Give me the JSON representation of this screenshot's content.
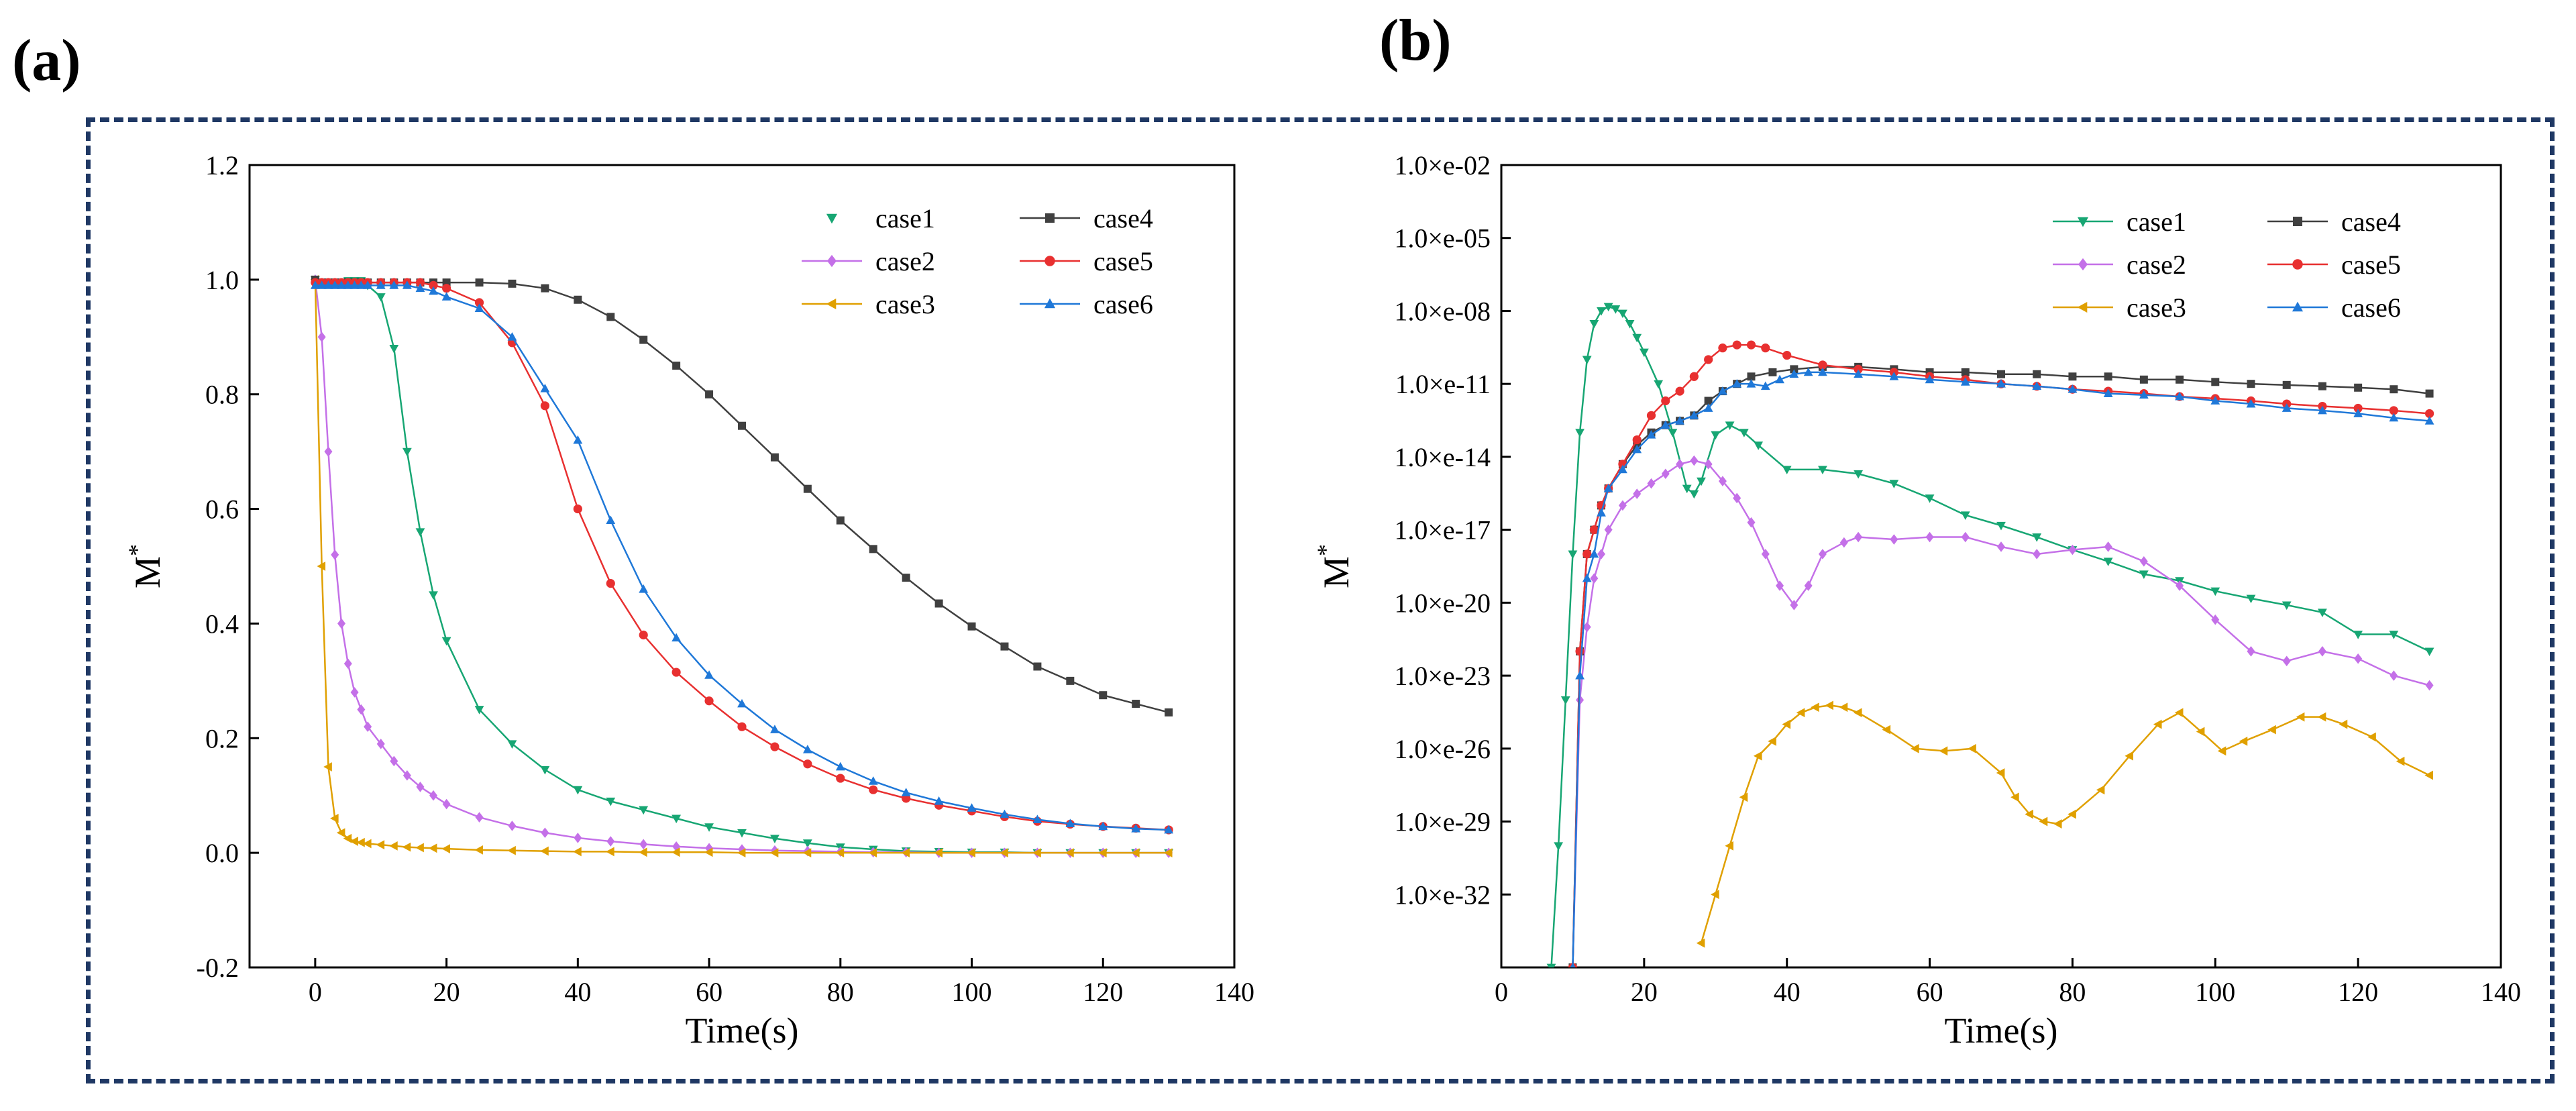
{
  "panels": {
    "a": "(a)",
    "b": "(b)"
  },
  "series_names": [
    "case1",
    "case2",
    "case3",
    "case4",
    "case5",
    "case6"
  ],
  "series_colors": {
    "case1": "#17a673",
    "case2": "#c470e8",
    "case3": "#e0a000",
    "case4": "#404040",
    "case5": "#e83030",
    "case6": "#1f78d8"
  },
  "series_markers": {
    "case1": "triangle-down",
    "case2": "diamond",
    "case3": "left-triangle",
    "case4": "square",
    "case5": "circle",
    "case6": "triangle-up"
  },
  "chart_data": [
    {
      "type": "line",
      "panel": "(a)",
      "xlabel": "Time(s)",
      "ylabel": "M",
      "ylabel_superscript": "*",
      "xlim": [
        -10,
        140
      ],
      "ylim": [
        -0.2,
        1.2
      ],
      "xticks": [
        0,
        20,
        40,
        60,
        80,
        100,
        120,
        140
      ],
      "yticks": [
        -0.2,
        0.0,
        0.2,
        0.4,
        0.6,
        0.8,
        1.0,
        1.2
      ],
      "ytick_labels": [
        "-0.2",
        "0.0",
        "0.2",
        "0.4",
        "0.6",
        "0.8",
        "1.0",
        "1.2"
      ],
      "grid": false,
      "legend_position": "top-right",
      "x": [
        0,
        1,
        2,
        3,
        4,
        5,
        6,
        7,
        8,
        10,
        12,
        14,
        16,
        18,
        20,
        25,
        30,
        35,
        40,
        45,
        50,
        55,
        60,
        65,
        70,
        75,
        80,
        85,
        90,
        95,
        100,
        105,
        110,
        115,
        120,
        125,
        130
      ],
      "series": [
        {
          "name": "case1",
          "values": [
            1.0,
            0.995,
            0.995,
            0.995,
            0.995,
            0.998,
            0.998,
            0.998,
            0.99,
            0.97,
            0.88,
            0.7,
            0.56,
            0.45,
            0.37,
            0.25,
            0.19,
            0.145,
            0.11,
            0.09,
            0.075,
            0.06,
            0.045,
            0.035,
            0.025,
            0.017,
            0.01,
            0.006,
            0.003,
            0.002,
            0.001,
            0.001,
            0.0,
            0.0,
            0.0,
            0.0,
            0.0
          ]
        },
        {
          "name": "case2",
          "values": [
            1.0,
            0.9,
            0.7,
            0.52,
            0.4,
            0.33,
            0.28,
            0.25,
            0.22,
            0.19,
            0.16,
            0.135,
            0.115,
            0.1,
            0.085,
            0.062,
            0.047,
            0.035,
            0.026,
            0.02,
            0.015,
            0.011,
            0.008,
            0.006,
            0.004,
            0.003,
            0.002,
            0.001,
            0.001,
            0.0,
            0.0,
            0.0,
            0.0,
            0.0,
            0.0,
            0.0,
            0.0
          ]
        },
        {
          "name": "case3",
          "values": [
            1.0,
            0.5,
            0.15,
            0.06,
            0.035,
            0.025,
            0.02,
            0.018,
            0.016,
            0.014,
            0.012,
            0.01,
            0.009,
            0.008,
            0.007,
            0.005,
            0.004,
            0.003,
            0.002,
            0.002,
            0.001,
            0.001,
            0.001,
            0.0,
            0.0,
            0.0,
            0.0,
            0.0,
            0.0,
            0.0,
            0.0,
            0.0,
            0.0,
            0.0,
            0.0,
            0.0,
            0.0
          ]
        },
        {
          "name": "case4",
          "values": [
            1.0,
            0.995,
            0.995,
            0.995,
            0.995,
            0.995,
            0.995,
            0.995,
            0.995,
            0.995,
            0.995,
            0.995,
            0.995,
            0.995,
            0.995,
            0.995,
            0.993,
            0.985,
            0.965,
            0.935,
            0.895,
            0.85,
            0.8,
            0.745,
            0.69,
            0.635,
            0.58,
            0.53,
            0.48,
            0.435,
            0.395,
            0.36,
            0.325,
            0.3,
            0.275,
            0.26,
            0.245
          ]
        },
        {
          "name": "case5",
          "values": [
            0.995,
            0.995,
            0.995,
            0.995,
            0.995,
            0.995,
            0.995,
            0.995,
            0.995,
            0.995,
            0.995,
            0.995,
            0.995,
            0.99,
            0.985,
            0.96,
            0.89,
            0.78,
            0.6,
            0.47,
            0.38,
            0.315,
            0.265,
            0.22,
            0.185,
            0.155,
            0.13,
            0.11,
            0.095,
            0.083,
            0.073,
            0.063,
            0.055,
            0.05,
            0.046,
            0.043,
            0.04
          ]
        },
        {
          "name": "case6",
          "values": [
            0.99,
            0.99,
            0.99,
            0.99,
            0.99,
            0.99,
            0.99,
            0.99,
            0.99,
            0.99,
            0.99,
            0.99,
            0.985,
            0.98,
            0.97,
            0.95,
            0.9,
            0.81,
            0.72,
            0.58,
            0.46,
            0.375,
            0.31,
            0.26,
            0.215,
            0.18,
            0.15,
            0.125,
            0.105,
            0.09,
            0.078,
            0.067,
            0.058,
            0.051,
            0.046,
            0.042,
            0.04
          ]
        }
      ]
    },
    {
      "type": "line",
      "panel": "(b)",
      "xlabel": "Time(s)",
      "ylabel": "M",
      "ylabel_superscript": "*",
      "y_scale": "log",
      "xlim": [
        0,
        140
      ],
      "ylim": [
        1e-35,
        0.01
      ],
      "xticks": [
        0,
        20,
        40,
        60,
        80,
        100,
        120,
        140
      ],
      "yticks": [
        1e-32,
        1e-29,
        1e-26,
        1e-23,
        1e-20,
        1e-17,
        1e-14,
        1e-11,
        1e-08,
        1e-05,
        0.01
      ],
      "ytick_labels": [
        "1.0×e-32",
        "1.0×e-29",
        "1.0×e-26",
        "1.0×e-23",
        "1.0×e-20",
        "1.0×e-17",
        "1.0×e-14",
        "1.0×e-11",
        "1.0×e-08",
        "1.0×e-05",
        "1.0×e-02"
      ],
      "grid": false,
      "legend_position": "top-right",
      "series": [
        {
          "name": "case1",
          "x": [
            7,
            8,
            9,
            10,
            11,
            12,
            13,
            14,
            15,
            16,
            17,
            18,
            19,
            20,
            22,
            24,
            26,
            27,
            28,
            30,
            32,
            34,
            36,
            40,
            45,
            50,
            55,
            60,
            65,
            70,
            75,
            80,
            85,
            90,
            95,
            100,
            105,
            110,
            115,
            120,
            125,
            130
          ],
          "y": [
            1e-35,
            1e-30,
            1e-24,
            1e-18,
            1e-13,
            1e-10,
            3e-09,
            1e-08,
            1.5e-08,
            1.2e-08,
            8e-09,
            3e-09,
            8e-10,
            2e-10,
            1e-11,
            1e-13,
            5e-16,
            3e-16,
            1e-15,
            8e-14,
            2e-13,
            1e-13,
            3e-14,
            3e-15,
            3e-15,
            2e-15,
            8e-16,
            2e-16,
            4e-17,
            1.5e-17,
            5e-18,
            1.5e-18,
            5e-19,
            1.5e-19,
            8e-20,
            3e-20,
            1.5e-20,
            8e-21,
            4e-21,
            5e-22,
            5e-22,
            1e-22
          ]
        },
        {
          "name": "case2",
          "x": [
            10,
            11,
            12,
            13,
            14,
            15,
            17,
            19,
            21,
            23,
            25,
            27,
            29,
            31,
            33,
            35,
            37,
            39,
            41,
            43,
            45,
            48,
            50,
            55,
            60,
            65,
            70,
            75,
            80,
            85,
            90,
            95,
            100,
            105,
            110,
            115,
            120,
            125,
            130
          ],
          "y": [
            1e-35,
            1e-24,
            1e-21,
            1e-19,
            1e-18,
            1e-17,
            1e-16,
            3e-16,
            8e-16,
            2e-15,
            5e-15,
            7e-15,
            5e-15,
            1e-15,
            2e-16,
            2e-17,
            1e-18,
            5e-20,
            8e-21,
            5e-20,
            1e-18,
            3e-18,
            5e-18,
            4e-18,
            5e-18,
            5e-18,
            2e-18,
            1e-18,
            1.5e-18,
            2e-18,
            5e-19,
            5e-20,
            2e-21,
            1e-22,
            4e-23,
            1e-22,
            5e-23,
            1e-23,
            4e-24
          ]
        },
        {
          "name": "case3",
          "x": [
            28,
            30,
            32,
            34,
            36,
            38,
            40,
            42,
            44,
            46,
            48,
            50,
            54,
            58,
            62,
            66,
            70,
            72,
            74,
            76,
            78,
            80,
            84,
            88,
            92,
            95,
            98,
            101,
            104,
            108,
            112,
            115,
            118,
            122,
            126,
            130
          ],
          "y": [
            1e-34,
            1e-32,
            1e-30,
            1e-28,
            5e-27,
            2e-26,
            1e-25,
            3e-25,
            5e-25,
            6e-25,
            5e-25,
            3e-25,
            6e-26,
            1e-26,
            8e-27,
            1e-26,
            1e-27,
            1e-28,
            2e-29,
            1e-29,
            8e-30,
            2e-29,
            2e-28,
            5e-27,
            1e-25,
            3e-25,
            5e-26,
            8e-27,
            2e-26,
            6e-26,
            2e-25,
            2e-25,
            1e-25,
            3e-26,
            3e-27,
            8e-28
          ]
        },
        {
          "name": "case4",
          "x": [
            10,
            11,
            12,
            13,
            14,
            15,
            17,
            19,
            21,
            23,
            25,
            27,
            29,
            31,
            33,
            35,
            38,
            41,
            45,
            50,
            55,
            60,
            65,
            70,
            75,
            80,
            85,
            90,
            95,
            100,
            105,
            110,
            115,
            120,
            125,
            130
          ],
          "y": [
            1e-35,
            1e-22,
            1e-18,
            1e-17,
            1e-16,
            5e-16,
            5e-15,
            3e-14,
            1e-13,
            2e-13,
            3e-13,
            5e-13,
            2e-12,
            5e-12,
            1e-11,
            2e-11,
            3e-11,
            4e-11,
            5e-11,
            5e-11,
            4e-11,
            3e-11,
            3e-11,
            2.5e-11,
            2.5e-11,
            2e-11,
            2e-11,
            1.5e-11,
            1.5e-11,
            1.2e-11,
            1e-11,
            9e-12,
            8e-12,
            7e-12,
            6e-12,
            4e-12
          ]
        },
        {
          "name": "case5",
          "x": [
            10,
            11,
            12,
            13,
            14,
            15,
            17,
            19,
            21,
            23,
            25,
            27,
            29,
            31,
            33,
            35,
            37,
            40,
            45,
            50,
            55,
            60,
            65,
            70,
            75,
            80,
            85,
            90,
            95,
            100,
            105,
            110,
            115,
            120,
            125,
            130
          ],
          "y": [
            1e-35,
            1e-22,
            1e-18,
            1e-17,
            1e-16,
            5e-16,
            5e-15,
            5e-14,
            5e-13,
            2e-12,
            5e-12,
            2e-11,
            1e-10,
            3e-10,
            4e-10,
            4e-10,
            3e-10,
            1.5e-10,
            6e-11,
            4e-11,
            3e-11,
            2e-11,
            1.5e-11,
            1e-11,
            8e-12,
            6e-12,
            5e-12,
            4e-12,
            3e-12,
            2.5e-12,
            2e-12,
            1.5e-12,
            1.2e-12,
            1e-12,
            8e-13,
            6e-13
          ]
        },
        {
          "name": "case6",
          "x": [
            10,
            11,
            12,
            13,
            14,
            15,
            17,
            19,
            21,
            23,
            25,
            27,
            29,
            31,
            33,
            35,
            37,
            39,
            41,
            43,
            45,
            50,
            55,
            60,
            65,
            70,
            75,
            80,
            85,
            90,
            95,
            100,
            105,
            110,
            115,
            120,
            125,
            130
          ],
          "y": [
            1e-35,
            1e-23,
            1e-19,
            1e-18,
            5e-17,
            5e-16,
            3e-15,
            2e-14,
            8e-14,
            2e-13,
            3e-13,
            5e-13,
            1e-12,
            5e-12,
            1e-11,
            1e-11,
            8e-12,
            1.5e-11,
            2.5e-11,
            3e-11,
            3e-11,
            2.5e-11,
            2e-11,
            1.5e-11,
            1.2e-11,
            1e-11,
            8e-12,
            6e-12,
            4e-12,
            3.5e-12,
            3e-12,
            2e-12,
            1.5e-12,
            1e-12,
            8e-13,
            6e-13,
            4e-13,
            3e-13
          ]
        }
      ]
    }
  ]
}
